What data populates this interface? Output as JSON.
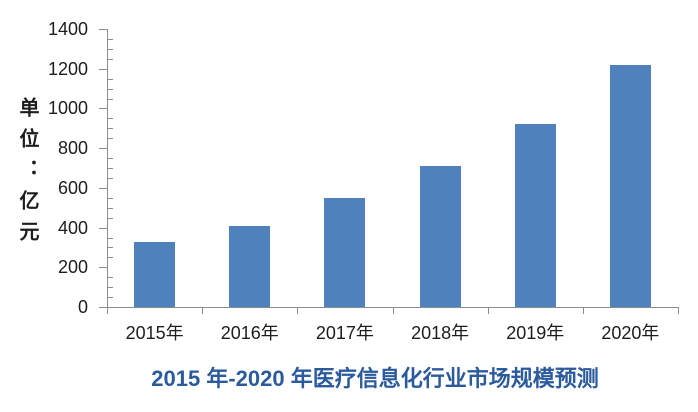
{
  "chart_data": {
    "type": "bar",
    "title": "2015 年-2020 年医疗信息化行业市场规模预测",
    "ylabel": "单位：亿元",
    "categories": [
      "2015年",
      "2016年",
      "2017年",
      "2018年",
      "2019年",
      "2020年"
    ],
    "values": [
      330,
      410,
      550,
      710,
      920,
      1220
    ],
    "ylim": [
      0,
      1400
    ],
    "y_ticks": [
      0,
      200,
      400,
      600,
      800,
      1000,
      1200,
      1400
    ],
    "y_major_step": 200,
    "y_minor_step": 50,
    "grid": false,
    "legend_position": "none",
    "colors": {
      "bar": "#4f81bd",
      "title": "#2b5a9d",
      "axis": "#8c8c8c",
      "text": "#1d1d1d"
    }
  }
}
